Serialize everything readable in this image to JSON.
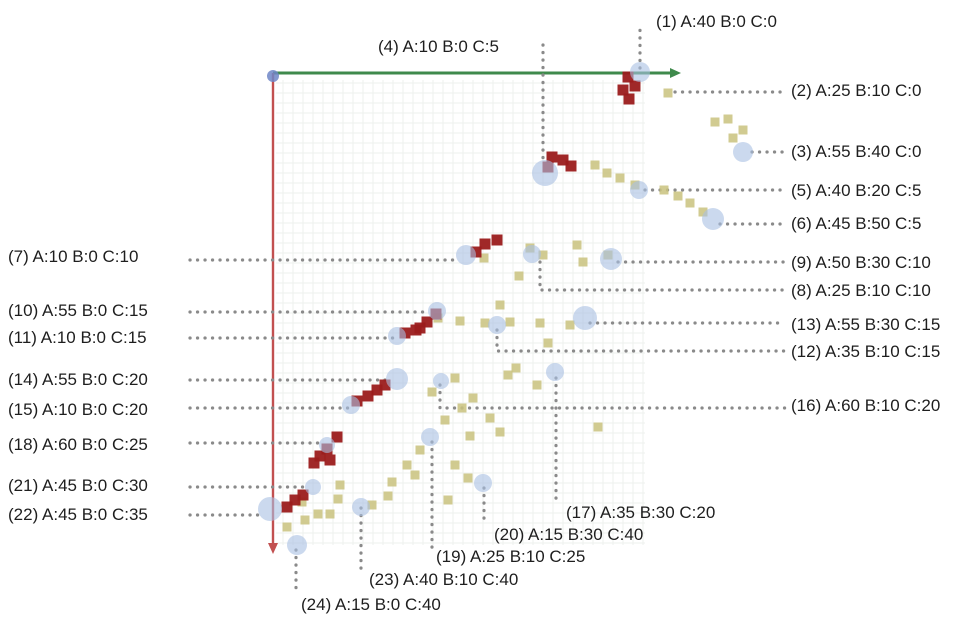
{
  "callouts": [
    {
      "id": "1",
      "text": "(1) A:40 B:0 C:0"
    },
    {
      "id": "2",
      "text": "(2) A:25 B:10 C:0"
    },
    {
      "id": "3",
      "text": "(3) A:55 B:40 C:0"
    },
    {
      "id": "4",
      "text": "(4) A:10 B:0 C:5"
    },
    {
      "id": "5",
      "text": "(5) A:40 B:20 C:5"
    },
    {
      "id": "6",
      "text": "(6) A:45 B:50 C:5"
    },
    {
      "id": "7",
      "text": "(7) A:10 B:0 C:10"
    },
    {
      "id": "8",
      "text": "(8) A:25 B:10 C:10"
    },
    {
      "id": "9",
      "text": "(9) A:50 B:30 C:10"
    },
    {
      "id": "10",
      "text": "(10) A:55 B:0 C:15"
    },
    {
      "id": "11",
      "text": "(11) A:10 B:0 C:15"
    },
    {
      "id": "12",
      "text": "(12) A:35 B:10 C:15"
    },
    {
      "id": "13",
      "text": "(13) A:55 B:30 C:15"
    },
    {
      "id": "14",
      "text": "(14) A:55 B:0 C:20"
    },
    {
      "id": "15",
      "text": "(15) A:10 B:0 C:20"
    },
    {
      "id": "16",
      "text": "(16) A:60 B:10 C:20"
    },
    {
      "id": "17",
      "text": "(17) A:35 B:30 C:20"
    },
    {
      "id": "18",
      "text": "(18) A:60 B:0 C:25"
    },
    {
      "id": "19",
      "text": "(19) A:25 B:10 C:25"
    },
    {
      "id": "20",
      "text": "(20) A:15 B:30 C:40"
    },
    {
      "id": "21",
      "text": "(21) A:45 B:0 C:30"
    },
    {
      "id": "22",
      "text": "(22) A:45 B:0 C:35"
    },
    {
      "id": "23",
      "text": "(23) A:40 B:10 C:40"
    },
    {
      "id": "24",
      "text": "(24) A:15 B:0 C:40"
    }
  ],
  "colors": {
    "h_axis": "#3f8a4c",
    "v_axis": "#c25050",
    "grid": "#eef0ee",
    "circle": "#a9bfe2",
    "red_square": "#9b1c1c",
    "olive_square": "#c9c27e",
    "leader": "#8a8a8a"
  }
}
